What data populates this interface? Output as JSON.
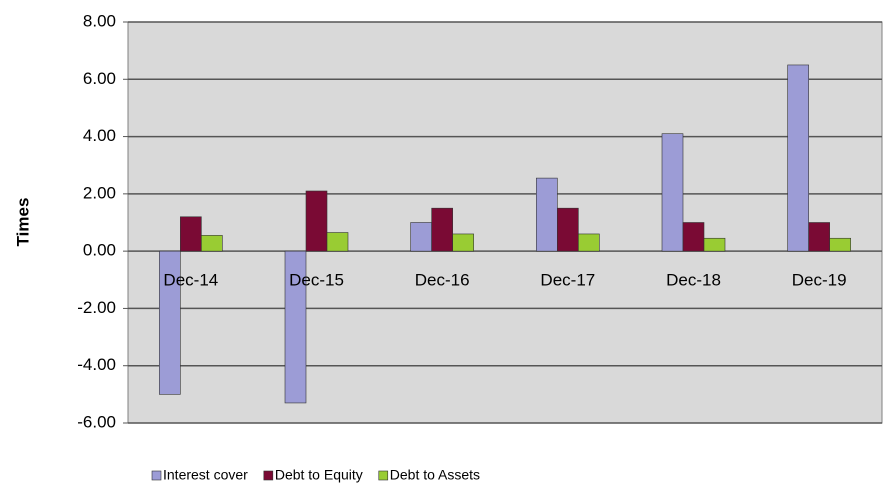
{
  "chart_data": {
    "type": "bar",
    "y_label": "Times",
    "categories": [
      "Dec-14",
      "Dec-15",
      "Dec-16",
      "Dec-17",
      "Dec-18",
      "Dec-19"
    ],
    "series": [
      {
        "name": "Interest cover",
        "color": "#9c9cd6",
        "values": [
          -5.0,
          -5.3,
          1.0,
          2.55,
          4.1,
          6.5
        ]
      },
      {
        "name": "Debt to Equity",
        "color": "#7a0a34",
        "values": [
          1.2,
          2.1,
          1.5,
          1.5,
          1.0,
          1.0
        ]
      },
      {
        "name": "Debt to Assets",
        "color": "#99cc33",
        "values": [
          0.55,
          0.65,
          0.6,
          0.6,
          0.45,
          0.45
        ]
      }
    ],
    "ylim": [
      -6,
      8
    ],
    "yticks": [
      {
        "value": -6,
        "label": "-6.00"
      },
      {
        "value": -4,
        "label": "-4.00"
      },
      {
        "value": -2,
        "label": "-2.00"
      },
      {
        "value": 0,
        "label": "0.00"
      },
      {
        "value": 2,
        "label": "2.00"
      },
      {
        "value": 4,
        "label": "4.00"
      },
      {
        "value": 6,
        "label": "6.00"
      },
      {
        "value": 8,
        "label": "8.00"
      }
    ],
    "grid": true,
    "legend": "bottom"
  }
}
